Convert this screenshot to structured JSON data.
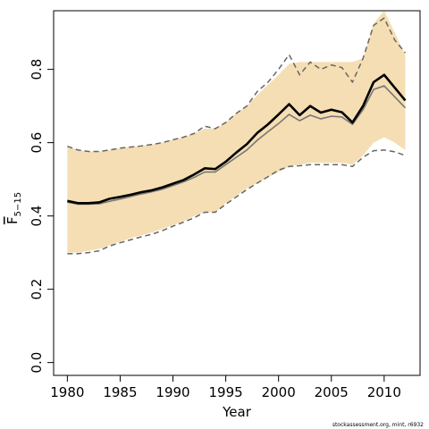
{
  "chart_data": {
    "type": "line",
    "xlabel": "Year",
    "ylabel": "F",
    "ylabel_subscript": "5−15",
    "xlim": [
      1978.7,
      2013.4
    ],
    "ylim": [
      -0.035,
      0.96
    ],
    "x_ticks": [
      1980,
      1985,
      1990,
      1995,
      2000,
      2005,
      2010
    ],
    "x_tick_labels": [
      "1980",
      "1985",
      "1990",
      "1995",
      "2000",
      "2005",
      "2010"
    ],
    "y_ticks": [
      0.0,
      0.2,
      0.4,
      0.6,
      0.8
    ],
    "y_tick_labels": [
      "0.0",
      "0.2",
      "0.4",
      "0.6",
      "0.8"
    ],
    "grid": false,
    "x": [
      1980,
      1981,
      1982,
      1983,
      1984,
      1985,
      1986,
      1987,
      1988,
      1989,
      1990,
      1991,
      1992,
      1993,
      1994,
      1995,
      1996,
      1997,
      1998,
      1999,
      2000,
      2001,
      2002,
      2003,
      2004,
      2005,
      2006,
      2007,
      2008,
      2009,
      2010,
      2011,
      2012
    ],
    "series": [
      {
        "role": "band",
        "color": "#f5deb3",
        "lower": [
          0.3,
          0.3,
          0.305,
          0.31,
          0.32,
          0.33,
          0.34,
          0.347,
          0.355,
          0.365,
          0.375,
          0.385,
          0.4,
          0.41,
          0.41,
          0.435,
          0.455,
          0.475,
          0.49,
          0.505,
          0.52,
          0.535,
          0.54,
          0.545,
          0.545,
          0.545,
          0.545,
          0.54,
          0.565,
          0.6,
          0.615,
          0.6,
          0.58
        ],
        "upper": [
          0.59,
          0.58,
          0.576,
          0.576,
          0.58,
          0.585,
          0.588,
          0.591,
          0.595,
          0.6,
          0.608,
          0.615,
          0.625,
          0.638,
          0.638,
          0.655,
          0.68,
          0.7,
          0.73,
          0.758,
          0.785,
          0.815,
          0.82,
          0.82,
          0.82,
          0.82,
          0.82,
          0.82,
          0.83,
          0.925,
          0.96,
          0.9,
          0.84
        ]
      },
      {
        "role": "upper_bound",
        "style": "dashed",
        "color": "#666666",
        "values": [
          0.59,
          0.58,
          0.576,
          0.576,
          0.58,
          0.585,
          0.588,
          0.591,
          0.595,
          0.6,
          0.608,
          0.615,
          0.625,
          0.645,
          0.638,
          0.655,
          0.68,
          0.7,
          0.74,
          0.765,
          0.8,
          0.84,
          0.785,
          0.82,
          0.8,
          0.812,
          0.805,
          0.765,
          0.83,
          0.92,
          0.94,
          0.88,
          0.845
        ]
      },
      {
        "role": "lower_bound",
        "style": "dashed",
        "color": "#666666",
        "values": [
          0.297,
          0.297,
          0.3,
          0.305,
          0.318,
          0.327,
          0.335,
          0.343,
          0.35,
          0.36,
          0.372,
          0.383,
          0.395,
          0.41,
          0.41,
          0.432,
          0.452,
          0.472,
          0.49,
          0.507,
          0.525,
          0.535,
          0.537,
          0.54,
          0.54,
          0.54,
          0.54,
          0.535,
          0.56,
          0.578,
          0.58,
          0.575,
          0.565
        ]
      },
      {
        "role": "median",
        "color": "#777777",
        "values": [
          0.438,
          0.432,
          0.432,
          0.433,
          0.44,
          0.446,
          0.453,
          0.46,
          0.466,
          0.473,
          0.483,
          0.493,
          0.505,
          0.52,
          0.52,
          0.54,
          0.56,
          0.58,
          0.607,
          0.63,
          0.652,
          0.677,
          0.66,
          0.675,
          0.665,
          0.672,
          0.67,
          0.65,
          0.69,
          0.745,
          0.755,
          0.725,
          0.695
        ]
      },
      {
        "role": "estimate",
        "color": "#000000",
        "values": [
          0.441,
          0.435,
          0.435,
          0.437,
          0.447,
          0.452,
          0.458,
          0.465,
          0.47,
          0.478,
          0.488,
          0.498,
          0.513,
          0.53,
          0.528,
          0.548,
          0.573,
          0.596,
          0.627,
          0.65,
          0.677,
          0.705,
          0.675,
          0.7,
          0.682,
          0.69,
          0.683,
          0.655,
          0.7,
          0.765,
          0.785,
          0.75,
          0.715
        ]
      }
    ]
  },
  "credit": "stockassessment.org, mint, r6932"
}
